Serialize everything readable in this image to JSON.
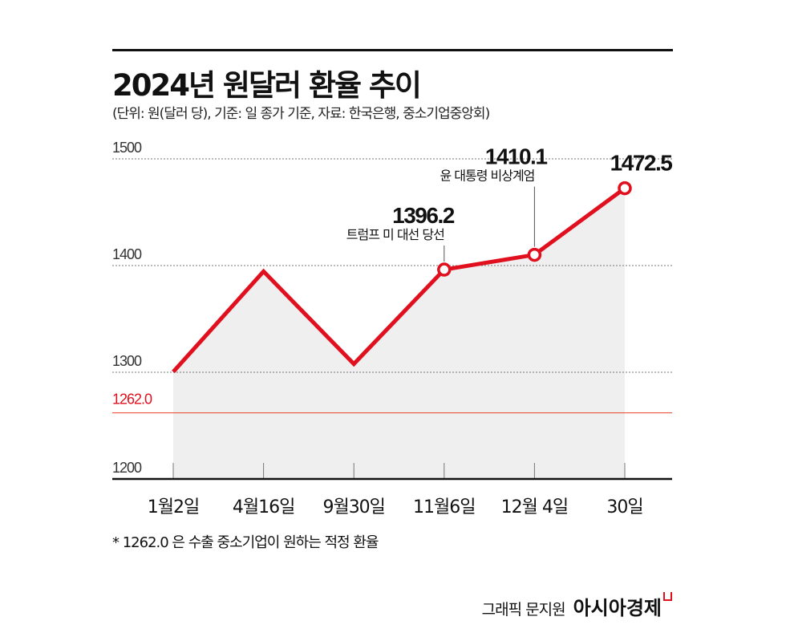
{
  "title": "2024년 원달러 환율 추이",
  "subtitle": "(단위: 원(달러 당), 기준: 일 종가 기준, 자료: 한국은행, 중소기업중앙회)",
  "chart_data": {
    "type": "line",
    "categories": [
      "1월2일",
      "4월16일",
      "9월30일",
      "11월6일",
      "12월 4일",
      "30일"
    ],
    "values": [
      1300.4,
      1394.5,
      1307.8,
      1396.2,
      1410.1,
      1472.5
    ],
    "ylim": [
      1200,
      1500
    ],
    "yticks": [
      "1200",
      "1300",
      "1400",
      "1500"
    ],
    "grid": "horizontal dotted",
    "reference_line": {
      "value": 1262.0,
      "label": "1262.0",
      "color": "#e0101e"
    },
    "annotations": [
      {
        "index": 3,
        "value_label": "1396.2",
        "text": "트럼프 미 대선 당선"
      },
      {
        "index": 4,
        "value_label": "1410.1",
        "text": "윤 대통령 비상계엄"
      },
      {
        "index": 5,
        "value_label": "1472.5",
        "text": ""
      }
    ],
    "line_color": "#e0101e",
    "fill_color": "#efefef"
  },
  "footnote": "* 1262.0 은 수출 중소기업이 원하는 적정 환율",
  "credit": {
    "author": "그래픽 문지원",
    "brand": "아시아경제"
  }
}
